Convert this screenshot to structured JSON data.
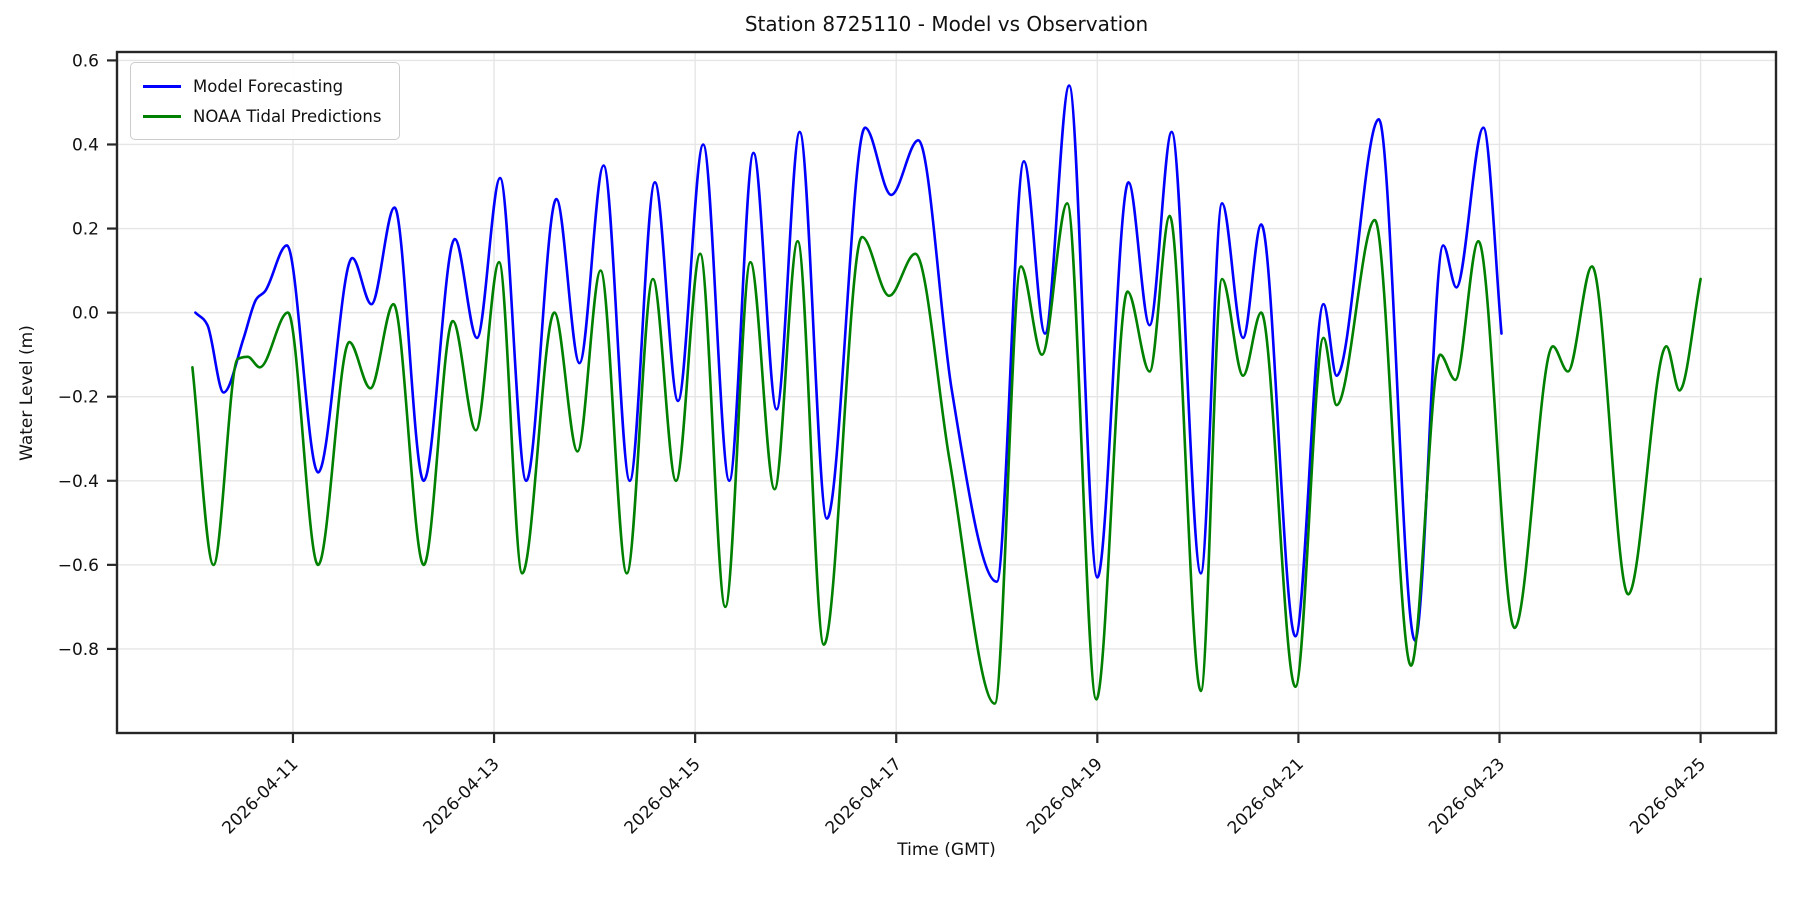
{
  "figure": {
    "title": "Station 8725110 - Model vs Observation",
    "xlabel": "Time (GMT)",
    "ylabel": "Water Level (m)"
  },
  "legend": {
    "position": "upper left",
    "items": [
      {
        "label": "Model Forecasting",
        "color": "#0000ff"
      },
      {
        "label": "NOAA Tidal Predictions",
        "color": "#008000"
      }
    ]
  },
  "chart_data": {
    "type": "line",
    "title": "Station 8725110 - Model vs Observation",
    "xlabel": "Time (GMT)",
    "ylabel": "Water Level (m)",
    "x_unit": "days since 2026-04-09 00:00 GMT",
    "xlim": [
      0.25,
      16.75
    ],
    "ylim": [
      -1.0,
      0.62
    ],
    "grid": true,
    "legend_position": "upper left",
    "colors": {
      "background": "#ffffff",
      "grid": "#e6e6e6",
      "spine": "#262626",
      "tick_label": "#111111"
    },
    "x_ticks": [
      {
        "t": 2,
        "label": "2026-04-11"
      },
      {
        "t": 4,
        "label": "2026-04-13"
      },
      {
        "t": 6,
        "label": "2026-04-15"
      },
      {
        "t": 8,
        "label": "2026-04-17"
      },
      {
        "t": 10,
        "label": "2026-04-19"
      },
      {
        "t": 12,
        "label": "2026-04-21"
      },
      {
        "t": 14,
        "label": "2026-04-23"
      },
      {
        "t": 16,
        "label": "2026-04-25"
      }
    ],
    "y_ticks": [
      {
        "v": 0.6,
        "label": "0.6"
      },
      {
        "v": 0.4,
        "label": "0.4"
      },
      {
        "v": 0.2,
        "label": "0.2"
      },
      {
        "v": 0.0,
        "label": "0.0"
      },
      {
        "v": -0.2,
        "label": "−0.2"
      },
      {
        "v": -0.4,
        "label": "−0.4"
      },
      {
        "v": -0.6,
        "label": "−0.6"
      },
      {
        "v": -0.8,
        "label": "−0.8"
      }
    ],
    "series": [
      {
        "name": "Model Forecasting",
        "color": "#0000ff",
        "line_width": 2.6,
        "points": [
          [
            1.03,
            0.0
          ],
          [
            1.15,
            -0.03
          ],
          [
            1.31,
            -0.19
          ],
          [
            1.51,
            -0.06
          ],
          [
            1.63,
            0.03
          ],
          [
            1.72,
            0.05
          ],
          [
            1.94,
            0.16
          ],
          [
            2.25,
            -0.38
          ],
          [
            2.59,
            0.13
          ],
          [
            2.78,
            0.02
          ],
          [
            3.01,
            0.25
          ],
          [
            3.3,
            -0.4
          ],
          [
            3.61,
            0.175
          ],
          [
            3.83,
            -0.06
          ],
          [
            4.06,
            0.32
          ],
          [
            4.32,
            -0.4
          ],
          [
            4.62,
            0.27
          ],
          [
            4.85,
            -0.12
          ],
          [
            5.09,
            0.35
          ],
          [
            5.35,
            -0.4
          ],
          [
            5.6,
            0.31
          ],
          [
            5.83,
            -0.21
          ],
          [
            6.08,
            0.4
          ],
          [
            6.34,
            -0.4
          ],
          [
            6.58,
            0.38
          ],
          [
            6.81,
            -0.23
          ],
          [
            7.04,
            0.43
          ],
          [
            7.31,
            -0.49
          ],
          [
            7.69,
            0.44
          ],
          [
            7.95,
            0.28
          ],
          [
            8.22,
            0.41
          ],
          [
            8.55,
            -0.18
          ],
          [
            9.0,
            -0.64
          ],
          [
            9.27,
            0.36
          ],
          [
            9.48,
            -0.05
          ],
          [
            9.72,
            0.54
          ],
          [
            10.0,
            -0.63
          ],
          [
            10.31,
            0.31
          ],
          [
            10.52,
            -0.03
          ],
          [
            10.74,
            0.43
          ],
          [
            11.03,
            -0.62
          ],
          [
            11.24,
            0.26
          ],
          [
            11.45,
            -0.06
          ],
          [
            11.63,
            0.21
          ],
          [
            11.97,
            -0.77
          ],
          [
            12.25,
            0.02
          ],
          [
            12.38,
            -0.15
          ],
          [
            12.8,
            0.46
          ],
          [
            13.16,
            -0.78
          ],
          [
            13.44,
            0.16
          ],
          [
            13.57,
            0.06
          ],
          [
            13.84,
            0.44
          ],
          [
            14.02,
            -0.05
          ]
        ]
      },
      {
        "name": "NOAA Tidal Predictions",
        "color": "#008000",
        "line_width": 2.6,
        "points": [
          [
            1.0,
            -0.13
          ],
          [
            1.21,
            -0.6
          ],
          [
            1.45,
            -0.11
          ],
          [
            1.55,
            -0.105
          ],
          [
            1.67,
            -0.13
          ],
          [
            1.95,
            0.0
          ],
          [
            2.25,
            -0.6
          ],
          [
            2.56,
            -0.07
          ],
          [
            2.77,
            -0.18
          ],
          [
            3.0,
            0.02
          ],
          [
            3.3,
            -0.6
          ],
          [
            3.59,
            -0.02
          ],
          [
            3.82,
            -0.28
          ],
          [
            4.05,
            0.12
          ],
          [
            4.28,
            -0.62
          ],
          [
            4.6,
            0.0
          ],
          [
            4.83,
            -0.33
          ],
          [
            5.06,
            0.1
          ],
          [
            5.32,
            -0.62
          ],
          [
            5.58,
            0.08
          ],
          [
            5.81,
            -0.4
          ],
          [
            6.05,
            0.14
          ],
          [
            6.3,
            -0.7
          ],
          [
            6.55,
            0.12
          ],
          [
            6.79,
            -0.42
          ],
          [
            7.02,
            0.17
          ],
          [
            7.28,
            -0.79
          ],
          [
            7.66,
            0.18
          ],
          [
            7.93,
            0.04
          ],
          [
            8.19,
            0.14
          ],
          [
            8.53,
            -0.35
          ],
          [
            8.98,
            -0.93
          ],
          [
            9.24,
            0.11
          ],
          [
            9.45,
            -0.1
          ],
          [
            9.7,
            0.26
          ],
          [
            9.99,
            -0.92
          ],
          [
            10.3,
            0.05
          ],
          [
            10.52,
            -0.14
          ],
          [
            10.72,
            0.23
          ],
          [
            11.03,
            -0.9
          ],
          [
            11.24,
            0.08
          ],
          [
            11.45,
            -0.15
          ],
          [
            11.63,
            0.0
          ],
          [
            11.97,
            -0.89
          ],
          [
            12.25,
            -0.06
          ],
          [
            12.38,
            -0.22
          ],
          [
            12.76,
            0.22
          ],
          [
            13.12,
            -0.84
          ],
          [
            13.41,
            -0.1
          ],
          [
            13.56,
            -0.16
          ],
          [
            13.79,
            0.17
          ],
          [
            14.15,
            -0.75
          ],
          [
            14.53,
            -0.08
          ],
          [
            14.68,
            -0.14
          ],
          [
            14.92,
            0.11
          ],
          [
            15.28,
            -0.67
          ],
          [
            15.66,
            -0.08
          ],
          [
            15.79,
            -0.185
          ],
          [
            16.0,
            0.08
          ]
        ]
      }
    ]
  }
}
